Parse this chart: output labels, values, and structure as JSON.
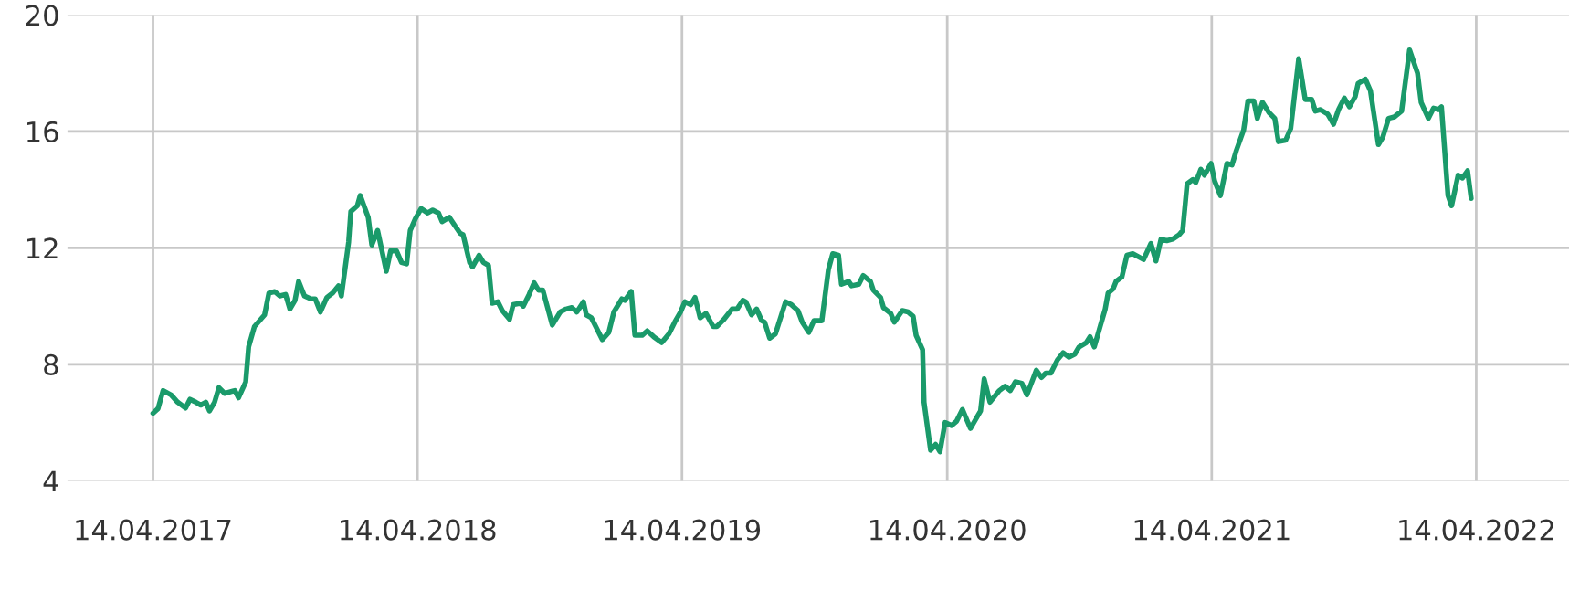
{
  "chart_data": {
    "type": "line",
    "x": [
      "2017-04-14",
      "2017-04-21",
      "2017-04-28",
      "2017-05-09",
      "2017-05-18",
      "2017-05-29",
      "2017-06-04",
      "2017-06-12",
      "2017-06-19",
      "2017-06-26",
      "2017-07-01",
      "2017-07-08",
      "2017-07-14",
      "2017-07-22",
      "2017-08-05",
      "2017-08-10",
      "2017-08-20",
      "2017-08-24",
      "2017-09-01",
      "2017-09-15",
      "2017-09-21",
      "2017-09-29",
      "2017-10-06",
      "2017-10-14",
      "2017-10-20",
      "2017-10-27",
      "2017-11-01",
      "2017-11-09",
      "2017-11-18",
      "2017-11-24",
      "2017-12-01",
      "2017-12-10",
      "2017-12-18",
      "2017-12-26",
      "2017-12-30",
      "2018-01-09",
      "2018-01-12",
      "2018-01-21",
      "2018-01-25",
      "2018-02-05",
      "2018-02-10",
      "2018-02-18",
      "2018-03-02",
      "2018-03-08",
      "2018-03-16",
      "2018-03-23",
      "2018-03-30",
      "2018-04-04",
      "2018-04-11",
      "2018-04-19",
      "2018-04-28",
      "2018-05-05",
      "2018-05-13",
      "2018-05-18",
      "2018-05-28",
      "2018-06-05",
      "2018-06-12",
      "2018-06-16",
      "2018-06-25",
      "2018-06-29",
      "2018-07-08",
      "2018-07-14",
      "2018-07-21",
      "2018-07-26",
      "2018-08-03",
      "2018-08-09",
      "2018-08-19",
      "2018-08-24",
      "2018-09-03",
      "2018-09-07",
      "2018-09-15",
      "2018-09-22",
      "2018-09-28",
      "2018-10-04",
      "2018-10-17",
      "2018-10-28",
      "2018-11-05",
      "2018-11-13",
      "2018-11-20",
      "2018-11-29",
      "2018-12-03",
      "2018-12-10",
      "2018-12-25",
      "2019-01-03",
      "2019-01-10",
      "2019-01-21",
      "2019-01-25",
      "2019-02-03",
      "2019-02-08",
      "2019-02-18",
      "2019-02-25",
      "2019-03-06",
      "2019-03-17",
      "2019-03-27",
      "2019-04-04",
      "2019-04-12",
      "2019-04-18",
      "2019-04-26",
      "2019-05-02",
      "2019-05-09",
      "2019-05-17",
      "2019-05-27",
      "2019-06-01",
      "2019-06-11",
      "2019-06-22",
      "2019-06-29",
      "2019-07-07",
      "2019-07-11",
      "2019-07-19",
      "2019-07-26",
      "2019-08-02",
      "2019-08-06",
      "2019-08-13",
      "2019-08-21",
      "2019-09-04",
      "2019-09-12",
      "2019-09-21",
      "2019-09-27",
      "2019-10-06",
      "2019-10-13",
      "2019-10-24",
      "2019-11-02",
      "2019-11-08",
      "2019-11-16",
      "2019-11-20",
      "2019-11-30",
      "2019-12-04",
      "2019-12-14",
      "2019-12-20",
      "2019-12-30",
      "2020-01-03",
      "2020-01-13",
      "2020-01-17",
      "2020-01-27",
      "2020-02-01",
      "2020-02-12",
      "2020-02-20",
      "2020-02-27",
      "2020-03-02",
      "2020-03-11",
      "2020-03-13",
      "2020-03-22",
      "2020-03-29",
      "2020-04-04",
      "2020-04-11",
      "2020-04-20",
      "2020-04-27",
      "2020-05-05",
      "2020-05-16",
      "2020-05-30",
      "2020-06-04",
      "2020-06-12",
      "2020-06-25",
      "2020-07-03",
      "2020-07-10",
      "2020-07-17",
      "2020-07-26",
      "2020-08-02",
      "2020-08-15",
      "2020-08-22",
      "2020-08-28",
      "2020-09-04",
      "2020-09-13",
      "2020-09-21",
      "2020-09-29",
      "2020-10-07",
      "2020-10-13",
      "2020-10-23",
      "2020-10-28",
      "2020-11-03",
      "2020-11-11",
      "2020-11-18",
      "2020-11-22",
      "2020-11-29",
      "2020-12-03",
      "2020-12-11",
      "2020-12-18",
      "2020-12-26",
      "2021-01-10",
      "2021-01-20",
      "2021-01-27",
      "2021-02-03",
      "2021-02-11",
      "2021-02-19",
      "2021-02-28",
      "2021-03-05",
      "2021-03-11",
      "2021-03-19",
      "2021-03-23",
      "2021-03-30",
      "2021-04-04",
      "2021-04-13",
      "2021-04-18",
      "2021-04-26",
      "2021-05-05",
      "2021-05-12",
      "2021-05-18",
      "2021-05-28",
      "2021-06-03",
      "2021-06-11",
      "2021-06-16",
      "2021-06-23",
      "2021-07-02",
      "2021-07-10",
      "2021-07-15",
      "2021-07-25",
      "2021-08-01",
      "2021-08-12",
      "2021-08-21",
      "2021-08-30",
      "2021-09-04",
      "2021-09-11",
      "2021-09-21",
      "2021-09-29",
      "2021-10-06",
      "2021-10-14",
      "2021-10-21",
      "2021-10-29",
      "2021-11-02",
      "2021-11-12",
      "2021-11-19",
      "2021-11-30",
      "2021-12-06",
      "2021-12-14",
      "2021-12-22",
      "2022-01-01",
      "2022-01-12",
      "2022-01-23",
      "2022-01-28",
      "2022-02-07",
      "2022-02-14",
      "2022-02-21",
      "2022-02-25",
      "2022-03-06",
      "2022-03-11",
      "2022-03-20",
      "2022-03-26",
      "2022-04-02",
      "2022-04-07"
    ],
    "series": [
      {
        "color": "#1a9a6a",
        "values": [
          6.32,
          6.48,
          7.1,
          6.95,
          6.7,
          6.5,
          6.8,
          6.7,
          6.6,
          6.7,
          6.4,
          6.7,
          7.2,
          7.0,
          7.1,
          6.85,
          7.4,
          8.6,
          9.3,
          9.7,
          10.45,
          10.5,
          10.35,
          10.4,
          9.9,
          10.2,
          10.85,
          10.35,
          10.25,
          10.25,
          9.8,
          10.3,
          10.45,
          10.7,
          10.35,
          12.2,
          13.25,
          13.45,
          13.8,
          13.05,
          12.1,
          12.6,
          11.2,
          11.9,
          11.9,
          11.5,
          11.45,
          12.6,
          13.0,
          13.35,
          13.2,
          13.3,
          13.2,
          12.9,
          13.05,
          12.75,
          12.5,
          12.45,
          11.5,
          11.35,
          11.75,
          11.5,
          11.4,
          10.1,
          10.15,
          9.85,
          9.55,
          10.05,
          10.1,
          10.0,
          10.4,
          10.8,
          10.55,
          10.55,
          9.35,
          9.8,
          9.9,
          9.95,
          9.8,
          10.15,
          9.7,
          9.6,
          8.85,
          9.1,
          9.8,
          10.25,
          10.2,
          10.5,
          9.0,
          9.0,
          9.15,
          8.95,
          8.75,
          9.05,
          9.45,
          9.8,
          10.15,
          10.05,
          10.3,
          9.6,
          9.75,
          9.3,
          9.3,
          9.55,
          9.9,
          9.9,
          10.2,
          10.15,
          9.7,
          9.9,
          9.5,
          9.45,
          8.9,
          9.05,
          10.15,
          10.05,
          9.85,
          9.45,
          9.1,
          9.5,
          9.5,
          11.25,
          11.8,
          11.75,
          10.75,
          10.85,
          10.7,
          10.75,
          11.05,
          10.85,
          10.55,
          10.3,
          9.95,
          9.75,
          9.45,
          9.85,
          9.8,
          9.65,
          9.0,
          8.5,
          6.7,
          5.05,
          5.25,
          5.0,
          6.0,
          5.9,
          6.05,
          6.45,
          5.8,
          6.4,
          7.5,
          6.7,
          7.1,
          7.25,
          7.1,
          7.4,
          7.35,
          6.95,
          7.8,
          7.55,
          7.7,
          7.7,
          8.15,
          8.4,
          8.25,
          8.35,
          8.6,
          8.75,
          8.95,
          8.6,
          9.3,
          9.9,
          10.45,
          10.6,
          10.85,
          11.0,
          11.75,
          11.8,
          11.6,
          12.15,
          11.55,
          12.3,
          12.25,
          12.3,
          12.45,
          12.6,
          14.2,
          14.35,
          14.25,
          14.7,
          14.5,
          14.9,
          14.3,
          13.8,
          14.9,
          14.85,
          15.35,
          16.05,
          17.05,
          17.05,
          16.45,
          17.0,
          16.65,
          16.45,
          15.65,
          15.7,
          16.1,
          18.5,
          17.1,
          17.1,
          16.7,
          16.75,
          16.6,
          16.25,
          16.75,
          17.15,
          16.85,
          17.2,
          17.65,
          17.8,
          17.4,
          15.55,
          15.8,
          16.45,
          16.5,
          16.7,
          18.8,
          18.0,
          17.0,
          16.45,
          16.8,
          16.75,
          16.85,
          13.8,
          13.45,
          14.5,
          14.4,
          14.65,
          13.7
        ]
      }
    ],
    "xlim": [
      "2016-12-17",
      "2022-08-20"
    ],
    "xticks": [
      {
        "value": "2017-04-14",
        "label": "14.04.2017"
      },
      {
        "value": "2018-04-14",
        "label": "14.04.2018"
      },
      {
        "value": "2019-04-14",
        "label": "14.04.2019"
      },
      {
        "value": "2020-04-14",
        "label": "14.04.2020"
      },
      {
        "value": "2021-04-14",
        "label": "14.04.2021"
      },
      {
        "value": "2022-04-14",
        "label": "14.04.2022"
      }
    ],
    "ylim": [
      4,
      20
    ],
    "yticks": [
      4,
      8,
      12,
      16,
      20
    ],
    "grid": true,
    "marker": "none",
    "line_style": "solid"
  }
}
